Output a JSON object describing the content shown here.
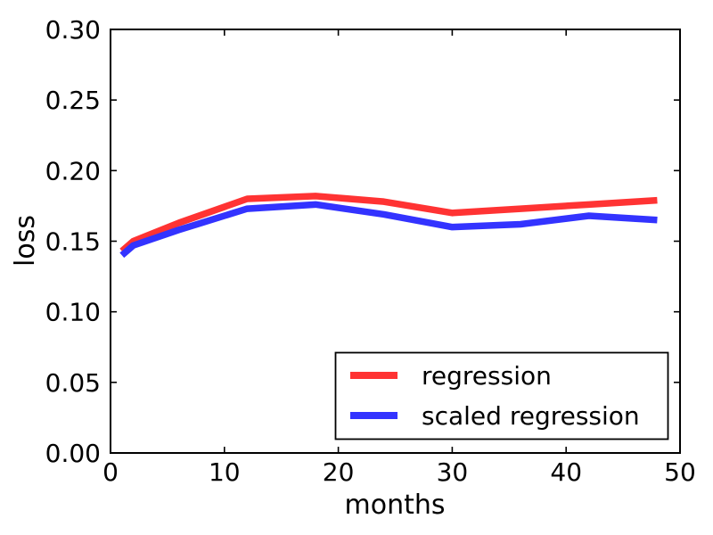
{
  "figure": {
    "background": "#ffffff",
    "axis_color": "#000000"
  },
  "chart_data": {
    "type": "line",
    "title": "",
    "xlabel": "months",
    "ylabel": "loss",
    "xlim": [
      0,
      50
    ],
    "ylim": [
      0.0,
      0.3
    ],
    "grid": false,
    "x_ticks": {
      "values": [
        0,
        10,
        20,
        30,
        40,
        50
      ],
      "labels": [
        "0",
        "10",
        "20",
        "30",
        "40",
        "50"
      ]
    },
    "y_ticks": {
      "values": [
        0.0,
        0.05,
        0.1,
        0.15,
        0.2,
        0.25,
        0.3
      ],
      "labels": [
        "0.00",
        "0.05",
        "0.10",
        "0.15",
        "0.20",
        "0.25",
        "0.30"
      ]
    },
    "x": [
      1,
      2,
      6,
      12,
      18,
      24,
      30,
      36,
      42,
      48
    ],
    "series": [
      {
        "name": "regression",
        "color": "#ff3333",
        "values": [
          0.143,
          0.15,
          0.163,
          0.18,
          0.182,
          0.178,
          0.17,
          0.173,
          0.176,
          0.179
        ]
      },
      {
        "name": "scaled regression",
        "color": "#3333ff",
        "values": [
          0.14,
          0.147,
          0.158,
          0.173,
          0.176,
          0.169,
          0.16,
          0.162,
          0.168,
          0.165
        ]
      }
    ],
    "legend": {
      "position": "lower right",
      "entries": [
        "regression",
        "scaled regression"
      ]
    }
  }
}
